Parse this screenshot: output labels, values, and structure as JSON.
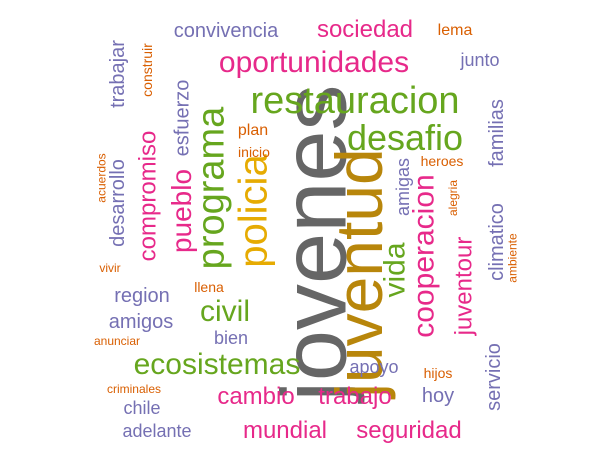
{
  "palette": {
    "teal": "#1b9e77",
    "orange": "#d95f02",
    "purple": "#7570b3",
    "pink": "#e7298a",
    "green": "#66a61e",
    "gold": "#b8860b",
    "mustard": "#e6ab02",
    "gray": "#666666"
  },
  "words": [
    {
      "text": "jovenes",
      "color": "gray",
      "weight": 100
    },
    {
      "text": "juventud",
      "color": "gold",
      "weight": 78
    },
    {
      "text": "restauracion",
      "color": "green",
      "weight": 42
    },
    {
      "text": "policia",
      "color": "mustard",
      "weight": 46
    },
    {
      "text": "programa",
      "color": "green",
      "weight": 40
    },
    {
      "text": "desafio",
      "color": "green",
      "weight": 37
    },
    {
      "text": "cooperacion",
      "color": "pink",
      "weight": 33
    },
    {
      "text": "oportunidades",
      "color": "pink",
      "weight": 32
    },
    {
      "text": "ecosistemas",
      "color": "green",
      "weight": 32
    },
    {
      "text": "civil",
      "color": "green",
      "weight": 32
    },
    {
      "text": "vida",
      "color": "green",
      "weight": 30
    },
    {
      "text": "pueblo",
      "color": "pink",
      "weight": 30
    },
    {
      "text": "compromiso",
      "color": "pink",
      "weight": 28
    },
    {
      "text": "juventour",
      "color": "pink",
      "weight": 26
    },
    {
      "text": "sociedad",
      "color": "pink",
      "weight": 26
    },
    {
      "text": "cambio",
      "color": "pink",
      "weight": 26
    },
    {
      "text": "trabajo",
      "color": "pink",
      "weight": 26
    },
    {
      "text": "mundial",
      "color": "pink",
      "weight": 26
    },
    {
      "text": "seguridad",
      "color": "pink",
      "weight": 26
    },
    {
      "text": "esfuerzo",
      "color": "purple",
      "weight": 22
    },
    {
      "text": "desarrollo",
      "color": "purple",
      "weight": 22
    },
    {
      "text": "amigas",
      "color": "purple",
      "weight": 20
    },
    {
      "text": "climatico",
      "color": "purple",
      "weight": 22
    },
    {
      "text": "familias",
      "color": "purple",
      "weight": 22
    },
    {
      "text": "servicio",
      "color": "purple",
      "weight": 22
    },
    {
      "text": "convivencia",
      "color": "purple",
      "weight": 22
    },
    {
      "text": "trabajar",
      "color": "purple",
      "weight": 22
    },
    {
      "text": "region",
      "color": "purple",
      "weight": 22
    },
    {
      "text": "amigos",
      "color": "purple",
      "weight": 22
    },
    {
      "text": "hoy",
      "color": "purple",
      "weight": 22
    },
    {
      "text": "junto",
      "color": "purple",
      "weight": 20
    },
    {
      "text": "bien",
      "color": "purple",
      "weight": 18
    },
    {
      "text": "apoyo",
      "color": "purple",
      "weight": 18
    },
    {
      "text": "chile",
      "color": "purple",
      "weight": 18
    },
    {
      "text": "adelante",
      "color": "purple",
      "weight": 18
    },
    {
      "text": "construir",
      "color": "orange",
      "weight": 14
    },
    {
      "text": "lema",
      "color": "orange",
      "weight": 16
    },
    {
      "text": "plan",
      "color": "orange",
      "weight": 16
    },
    {
      "text": "inicio",
      "color": "orange",
      "weight": 14
    },
    {
      "text": "acuerdos",
      "color": "orange",
      "weight": 12
    },
    {
      "text": "heroes",
      "color": "orange",
      "weight": 14
    },
    {
      "text": "alegria",
      "color": "orange",
      "weight": 12
    },
    {
      "text": "ambiente",
      "color": "orange",
      "weight": 12
    },
    {
      "text": "vivir",
      "color": "orange",
      "weight": 12
    },
    {
      "text": "llena",
      "color": "orange",
      "weight": 14
    },
    {
      "text": "anunciar",
      "color": "orange",
      "weight": 12
    },
    {
      "text": "criminales",
      "color": "orange",
      "weight": 12
    },
    {
      "text": "hijos",
      "color": "orange",
      "weight": 14
    }
  ]
}
